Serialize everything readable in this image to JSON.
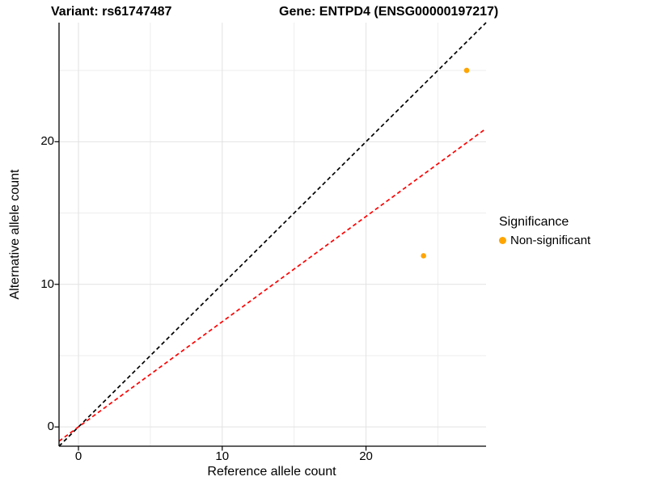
{
  "figure": {
    "title_left": "Variant: rs61747487",
    "title_right": "Gene: ENTPD4 (ENSG00000197217)"
  },
  "chart_data": {
    "type": "scatter",
    "title": "Variant: rs61747487   Gene: ENTPD4 (ENSG00000197217)",
    "xlabel": "Reference allele count",
    "ylabel": "Alternative allele count",
    "xlim": [
      -1.35,
      28.35
    ],
    "ylim": [
      -1.35,
      28.35
    ],
    "x_ticks": {
      "values": [
        0,
        10,
        20
      ],
      "labels": [
        "0",
        "10",
        "20"
      ]
    },
    "y_ticks": {
      "values": [
        0,
        10,
        20
      ],
      "labels": [
        "0",
        "10",
        "20"
      ]
    },
    "minor_ticks": [
      5,
      15,
      25
    ],
    "grid": true,
    "points": [
      {
        "x": 27,
        "y": 25,
        "significance": "Non-significant"
      },
      {
        "x": 24,
        "y": 12,
        "significance": "Non-significant"
      }
    ],
    "point_color": "#FFA500",
    "point_radius": 3.3,
    "reference_lines": [
      {
        "name": "identity-line",
        "slope": 1,
        "intercept": 0,
        "color": "#000000",
        "style": "dashed"
      },
      {
        "name": "allelic-ratio-line",
        "slope": 0.738,
        "intercept": 0,
        "color": "#FF0000",
        "style": "dashed"
      }
    ],
    "legend": {
      "title": "Significance",
      "position": "right",
      "items": [
        {
          "label": "Non-significant",
          "color": "#FFA500"
        }
      ]
    },
    "colors": {
      "grid_major": "#E2E2E2",
      "grid_minor": "#EDEDED",
      "axis": "#000000",
      "background": "#FFFFFF"
    }
  }
}
